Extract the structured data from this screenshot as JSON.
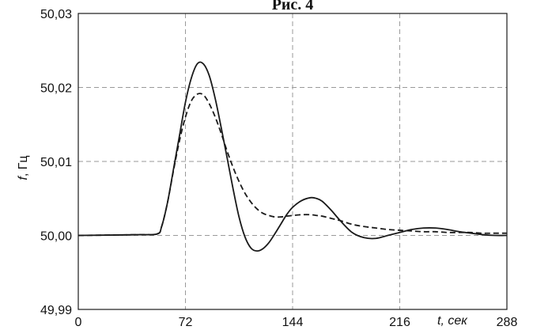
{
  "chart_data": {
    "type": "line",
    "title": "Рис. 4",
    "xlabel_var": "t",
    "xlabel_unit": ", сек",
    "ylabel_var": "f",
    "ylabel_unit": ", Гц",
    "xlim": [
      0,
      288
    ],
    "ylim": [
      49.99,
      50.03
    ],
    "x_ticks": [
      0,
      72,
      144,
      216,
      288
    ],
    "x_tick_labels": [
      "0",
      "72",
      "144",
      "216",
      "288"
    ],
    "y_ticks": [
      49.99,
      50.0,
      50.01,
      50.02,
      50.03
    ],
    "y_tick_labels": [
      "49,99",
      "50,00",
      "50,01",
      "50,02",
      "50,03"
    ],
    "grid": true,
    "series": [
      {
        "style": "solid",
        "color": "#1a1a1a",
        "x": [
          0,
          40,
          53,
          56,
          60,
          64,
          68,
          72,
          76,
          80,
          84,
          88,
          92,
          96,
          100,
          104,
          108,
          112,
          116,
          120,
          124,
          128,
          132,
          136,
          140,
          144,
          150,
          156,
          160,
          164,
          170,
          176,
          184,
          192,
          200,
          208,
          216,
          224,
          232,
          240,
          248,
          256,
          264,
          272,
          280,
          288
        ],
        "y": [
          50.0,
          50.0001,
          50.0002,
          50.0012,
          50.0045,
          50.009,
          50.0135,
          50.018,
          50.0213,
          50.0232,
          50.0232,
          50.0216,
          50.0185,
          50.0146,
          50.0105,
          50.0063,
          50.0025,
          49.9998,
          49.9983,
          49.9979,
          49.9982,
          49.999,
          50.0002,
          50.0015,
          50.0028,
          50.0038,
          50.0047,
          50.0051,
          50.005,
          50.0046,
          50.0034,
          50.002,
          50.0004,
          49.9997,
          49.9996,
          50.0,
          50.0004,
          50.0008,
          50.001,
          50.001,
          50.0008,
          50.0005,
          50.0003,
          50.0001,
          50.0,
          50.0
        ]
      },
      {
        "style": "dashed",
        "color": "#1a1a1a",
        "x": [
          0,
          40,
          53,
          56,
          60,
          64,
          68,
          72,
          76,
          80,
          84,
          88,
          92,
          96,
          100,
          104,
          108,
          112,
          116,
          120,
          124,
          128,
          132,
          136,
          140,
          144,
          150,
          156,
          160,
          164,
          170,
          176,
          184,
          192,
          200,
          208,
          216,
          224,
          232,
          240,
          248,
          256,
          264,
          272,
          280,
          288
        ],
        "y": [
          50.0,
          50.0001,
          50.0002,
          50.0012,
          50.0045,
          50.0088,
          50.0128,
          50.016,
          50.0182,
          50.0191,
          50.019,
          50.0178,
          50.016,
          50.0138,
          50.0114,
          50.0092,
          50.0073,
          50.0057,
          50.0045,
          50.0036,
          50.003,
          50.0027,
          50.0025,
          50.0025,
          50.0026,
          50.0027,
          50.0028,
          50.0028,
          50.0027,
          50.0026,
          50.0023,
          50.002,
          50.0015,
          50.0012,
          50.001,
          50.0008,
          50.0007,
          50.0006,
          50.0005,
          50.0005,
          50.0004,
          50.0004,
          50.0004,
          50.0003,
          50.0003,
          50.0003
        ]
      }
    ]
  }
}
